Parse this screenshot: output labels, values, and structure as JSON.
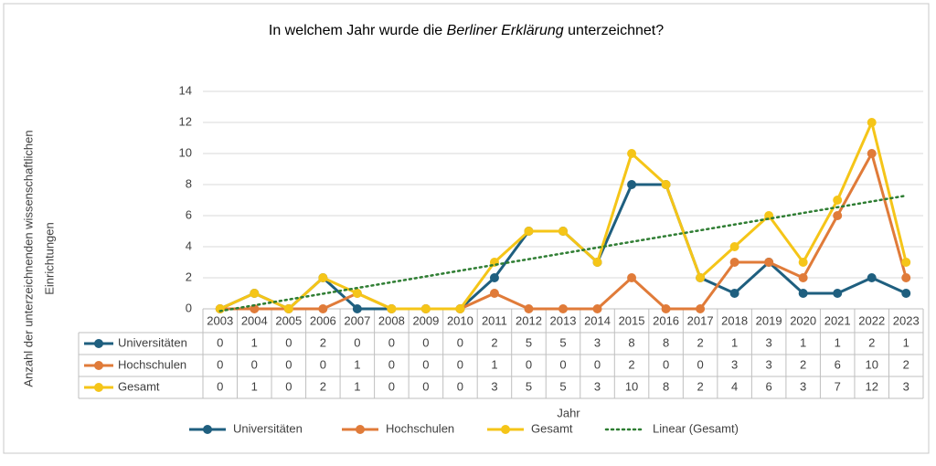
{
  "chart_data": {
    "type": "line",
    "title": [
      "In welchem Jahr wurde die ",
      "Berliner Erklärung",
      " unterzeichnet?"
    ],
    "xlabel": "Jahr",
    "ylabel": [
      "Anzahl der unterzeichnenden wissenschaftlichen",
      "Einrichtungen"
    ],
    "categories": [
      "2003",
      "2004",
      "2005",
      "2006",
      "2007",
      "2008",
      "2009",
      "2010",
      "2011",
      "2012",
      "2013",
      "2014",
      "2015",
      "2016",
      "2017",
      "2018",
      "2019",
      "2020",
      "2021",
      "2022",
      "2023"
    ],
    "series": [
      {
        "name": "Universitäten",
        "color": "#1f5f7f",
        "values": [
          0,
          1,
          0,
          2,
          0,
          0,
          0,
          0,
          2,
          5,
          5,
          3,
          8,
          8,
          2,
          1,
          3,
          1,
          1,
          2,
          1
        ]
      },
      {
        "name": "Hochschulen",
        "color": "#e07b39",
        "values": [
          0,
          0,
          0,
          0,
          1,
          0,
          0,
          0,
          1,
          0,
          0,
          0,
          2,
          0,
          0,
          3,
          3,
          2,
          6,
          10,
          2
        ]
      },
      {
        "name": "Gesamt",
        "color": "#f5c518",
        "values": [
          0,
          1,
          0,
          2,
          1,
          0,
          0,
          0,
          3,
          5,
          5,
          3,
          10,
          8,
          2,
          4,
          6,
          3,
          7,
          12,
          3
        ]
      }
    ],
    "trendline": {
      "name": "Linear (Gesamt)",
      "color": "#2e7d32"
    },
    "ylim": [
      0,
      14
    ],
    "yticks": [
      0,
      2,
      4,
      6,
      8,
      10,
      12,
      14
    ],
    "grid": true
  }
}
